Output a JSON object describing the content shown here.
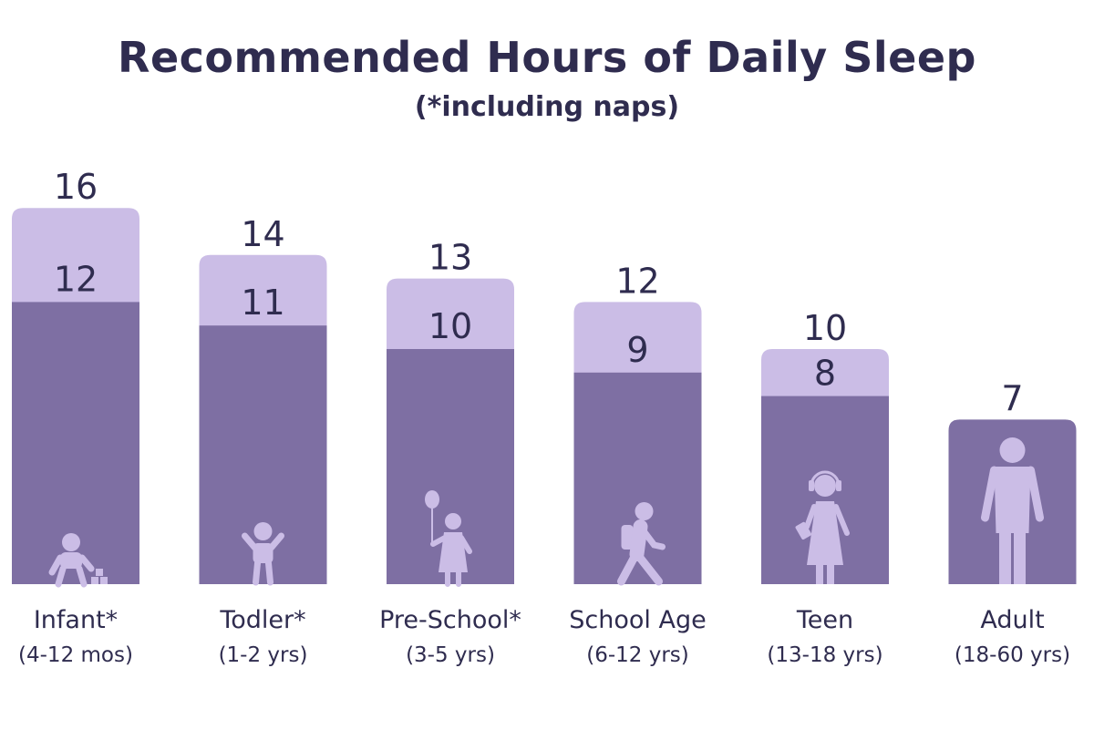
{
  "chart_data": {
    "type": "bar",
    "title": "Recommended Hours of Daily Sleep",
    "subtitle": "(*including naps)",
    "categories": [
      "Infant*",
      "Todler*",
      "Pre-School*",
      "School Age",
      "Teen",
      "Adult"
    ],
    "age_ranges": [
      "(4-12 mos)",
      "(1-2 yrs)",
      "(3-5 yrs)",
      "(6-12 yrs)",
      "(13-18 yrs)",
      "(18-60 yrs)"
    ],
    "icons": [
      "baby-icon",
      "toddler-icon",
      "child-with-balloon-icon",
      "walking-child-icon",
      "teen-with-headphones-icon",
      "adult-icon"
    ],
    "series": [
      {
        "values": [
          12,
          11,
          10,
          9,
          8,
          7
        ]
      },
      {
        "values": [
          16,
          14,
          13,
          12,
          10,
          7
        ]
      }
    ],
    "ylim": [
      0,
      16
    ],
    "xlabel": "",
    "ylabel": "",
    "grid": false,
    "colors": {
      "min": "#7e6fa3",
      "max": "#cbbde6",
      "icon": "#cbbde6",
      "text": "#2f2c4f"
    }
  }
}
